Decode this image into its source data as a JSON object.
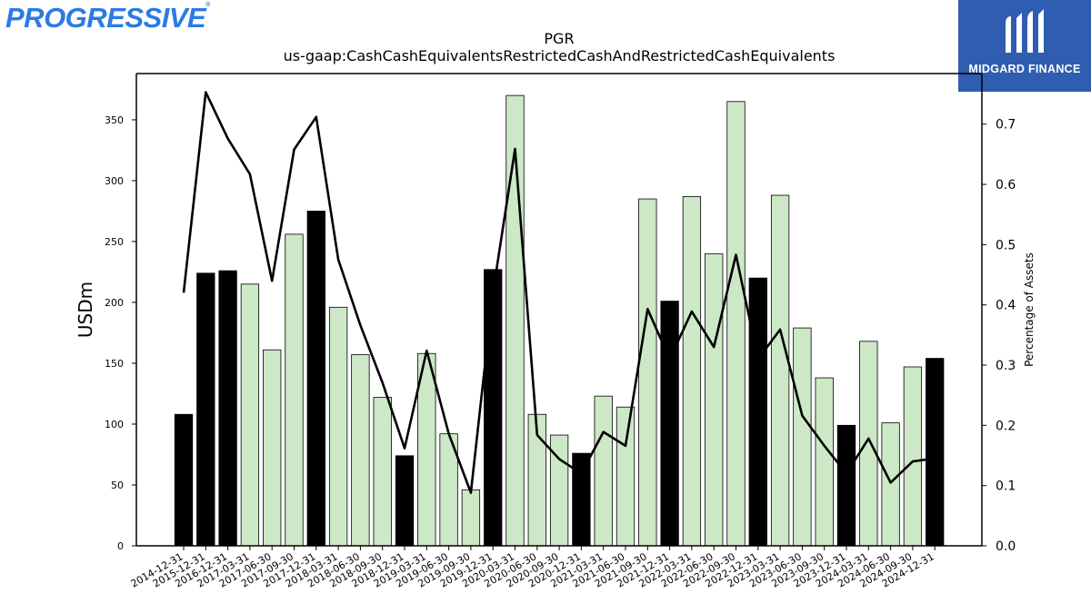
{
  "logos": {
    "left": "PROGRESSIVE",
    "right": "MIDGARD FINANCE"
  },
  "chart_data": {
    "type": "bar",
    "title": "PGR",
    "subtitle": "us-gaap:CashCashEquivalentsRestrictedCashAndRestrictedCashEquivalents",
    "ylabel": "USDm",
    "y2label": "Percentage of Assets",
    "ylim": [
      0,
      388
    ],
    "y2lim": [
      0,
      0.784
    ],
    "yticks": [
      0,
      50,
      100,
      150,
      200,
      250,
      300,
      350
    ],
    "y2ticks": [
      0.0,
      0.1,
      0.2,
      0.3,
      0.4,
      0.5,
      0.6,
      0.7
    ],
    "grid": false,
    "categories": [
      "2014-12-31",
      "2015-12-31",
      "2016-12-31",
      "2017-03-31",
      "2017-06-30",
      "2017-09-30",
      "2017-12-31",
      "2018-03-31",
      "2018-06-30",
      "2018-09-30",
      "2018-12-31",
      "2019-03-31",
      "2019-06-30",
      "2019-09-30",
      "2019-12-31",
      "2020-03-31",
      "2020-06-30",
      "2020-09-30",
      "2020-12-31",
      "2021-03-31",
      "2021-06-30",
      "2021-09-30",
      "2021-12-31",
      "2022-03-31",
      "2022-06-30",
      "2022-09-30",
      "2022-12-31",
      "2023-03-31",
      "2023-06-30",
      "2023-09-30",
      "2023-12-31",
      "2024-03-31",
      "2024-06-30",
      "2024-09-30",
      "2024-12-31"
    ],
    "series": [
      {
        "kind": "bar",
        "axis": "left",
        "values": [
          108,
          224,
          226,
          215,
          161,
          256,
          275,
          196,
          157,
          122,
          74,
          158,
          92,
          46,
          227,
          370,
          108,
          91,
          76,
          123,
          114,
          285,
          201,
          287,
          240,
          365,
          220,
          288,
          179,
          138,
          99,
          168,
          101,
          147,
          154
        ],
        "year_end_color": "#000000",
        "quarter_color": "#cce8c6"
      },
      {
        "kind": "line",
        "axis": "right",
        "color": "#000000",
        "values": [
          0.42,
          0.753,
          0.676,
          0.617,
          0.44,
          0.658,
          0.712,
          0.475,
          0.366,
          0.271,
          0.162,
          0.324,
          0.186,
          0.088,
          0.42,
          0.659,
          0.184,
          0.144,
          0.12,
          0.189,
          0.166,
          0.393,
          0.31,
          0.389,
          0.33,
          0.483,
          0.31,
          0.359,
          0.216,
          0.166,
          0.12,
          0.178,
          0.105,
          0.14,
          0.145
        ]
      }
    ]
  }
}
